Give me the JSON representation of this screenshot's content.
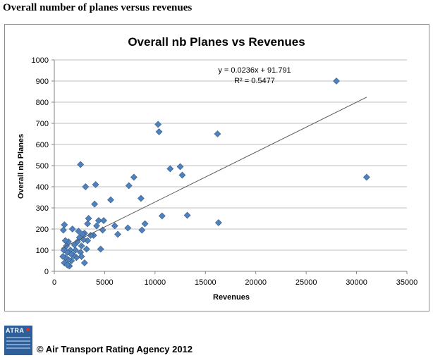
{
  "page": {
    "title": "Overall number of planes versus revenues",
    "logo_text": "ATRA",
    "copyright": "© Air Transport Rating Agency 2012"
  },
  "colors": {
    "point": "#4f81bd",
    "point_stroke": "#385d8a",
    "trendline": "#595959",
    "gridline": "#bfbfbf"
  },
  "chart_data": {
    "type": "scatter",
    "title": "Overall nb Planes vs Revenues",
    "xlabel": "Revenues",
    "ylabel": "Overall nb Planes",
    "xlim": [
      0,
      35000
    ],
    "ylim": [
      0,
      1000
    ],
    "x_ticks": [
      0,
      5000,
      10000,
      15000,
      20000,
      25000,
      30000,
      35000
    ],
    "y_ticks": [
      0,
      100,
      200,
      300,
      400,
      500,
      600,
      700,
      800,
      900,
      1000
    ],
    "grid": "horizontal",
    "trendline": {
      "slope": 0.0236,
      "intercept": 91.791,
      "x_range": [
        700,
        31000
      ],
      "equation": "y = 0.0236x + 91.791",
      "r_squared": "R² = 0.5477"
    },
    "points": [
      {
        "x": 28000,
        "y": 900
      },
      {
        "x": 31000,
        "y": 445
      },
      {
        "x": 10300,
        "y": 695
      },
      {
        "x": 10400,
        "y": 660
      },
      {
        "x": 16200,
        "y": 650
      },
      {
        "x": 16300,
        "y": 230
      },
      {
        "x": 12500,
        "y": 495
      },
      {
        "x": 11500,
        "y": 485
      },
      {
        "x": 12700,
        "y": 455
      },
      {
        "x": 13200,
        "y": 265
      },
      {
        "x": 10700,
        "y": 262
      },
      {
        "x": 2600,
        "y": 505
      },
      {
        "x": 7900,
        "y": 445
      },
      {
        "x": 7400,
        "y": 405
      },
      {
        "x": 4100,
        "y": 410
      },
      {
        "x": 3100,
        "y": 400
      },
      {
        "x": 8600,
        "y": 345
      },
      {
        "x": 5600,
        "y": 338
      },
      {
        "x": 4000,
        "y": 318
      },
      {
        "x": 9000,
        "y": 225
      },
      {
        "x": 8700,
        "y": 195
      },
      {
        "x": 7300,
        "y": 205
      },
      {
        "x": 6300,
        "y": 175
      },
      {
        "x": 6000,
        "y": 215
      },
      {
        "x": 4900,
        "y": 240
      },
      {
        "x": 4800,
        "y": 195
      },
      {
        "x": 4600,
        "y": 105
      },
      {
        "x": 4400,
        "y": 240
      },
      {
        "x": 4200,
        "y": 215
      },
      {
        "x": 3900,
        "y": 170
      },
      {
        "x": 3600,
        "y": 170
      },
      {
        "x": 3400,
        "y": 250
      },
      {
        "x": 3300,
        "y": 225
      },
      {
        "x": 3300,
        "y": 145
      },
      {
        "x": 3000,
        "y": 180
      },
      {
        "x": 2900,
        "y": 150
      },
      {
        "x": 2800,
        "y": 175
      },
      {
        "x": 2700,
        "y": 120
      },
      {
        "x": 2600,
        "y": 90
      },
      {
        "x": 2500,
        "y": 160
      },
      {
        "x": 2400,
        "y": 190
      },
      {
        "x": 2300,
        "y": 140
      },
      {
        "x": 2200,
        "y": 65
      },
      {
        "x": 2100,
        "y": 100
      },
      {
        "x": 2000,
        "y": 125
      },
      {
        "x": 1900,
        "y": 75
      },
      {
        "x": 1800,
        "y": 200
      },
      {
        "x": 1700,
        "y": 50
      },
      {
        "x": 1600,
        "y": 100
      },
      {
        "x": 1500,
        "y": 25
      },
      {
        "x": 1400,
        "y": 140
      },
      {
        "x": 1400,
        "y": 55
      },
      {
        "x": 1300,
        "y": 90
      },
      {
        "x": 1200,
        "y": 120
      },
      {
        "x": 1100,
        "y": 145
      },
      {
        "x": 1100,
        "y": 65
      },
      {
        "x": 1000,
        "y": 220
      },
      {
        "x": 1000,
        "y": 40
      },
      {
        "x": 950,
        "y": 100
      },
      {
        "x": 900,
        "y": 195
      },
      {
        "x": 850,
        "y": 70
      },
      {
        "x": 3000,
        "y": 40
      },
      {
        "x": 3200,
        "y": 105
      },
      {
        "x": 2700,
        "y": 70
      },
      {
        "x": 1700,
        "y": 80
      },
      {
        "x": 1300,
        "y": 30
      }
    ]
  }
}
